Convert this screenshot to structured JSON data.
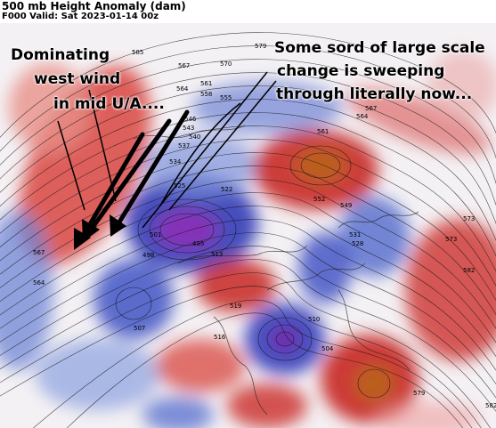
{
  "header": {
    "title": "500 mb Height Anomaly (dam)",
    "subtitle": "F000 Valid: Sat 2023-01-14 00z"
  },
  "annotations": {
    "left_note": [
      "Dominating",
      "west wind",
      "in mid U/A...."
    ],
    "right_note": [
      "Some sord of large scale",
      "change is sweeping",
      "through literally now..."
    ]
  },
  "contour_labels": [
    "585",
    "579",
    "570",
    "573",
    "567",
    "564",
    "561",
    "558",
    "555",
    "552",
    "549",
    "546",
    "543",
    "540",
    "537",
    "534",
    "531",
    "528",
    "525",
    "522",
    "519",
    "516",
    "513",
    "510",
    "507",
    "504",
    "501",
    "498",
    "495",
    "567",
    "564",
    "582",
    "573",
    "579",
    "582",
    "561",
    "564",
    "567"
  ],
  "colors": {
    "positive_anomaly": "#c8202c",
    "negative_anomaly": "#2a3fb8",
    "strong_negative": "#7a1ea8",
    "strong_positive": "#b8641e"
  }
}
